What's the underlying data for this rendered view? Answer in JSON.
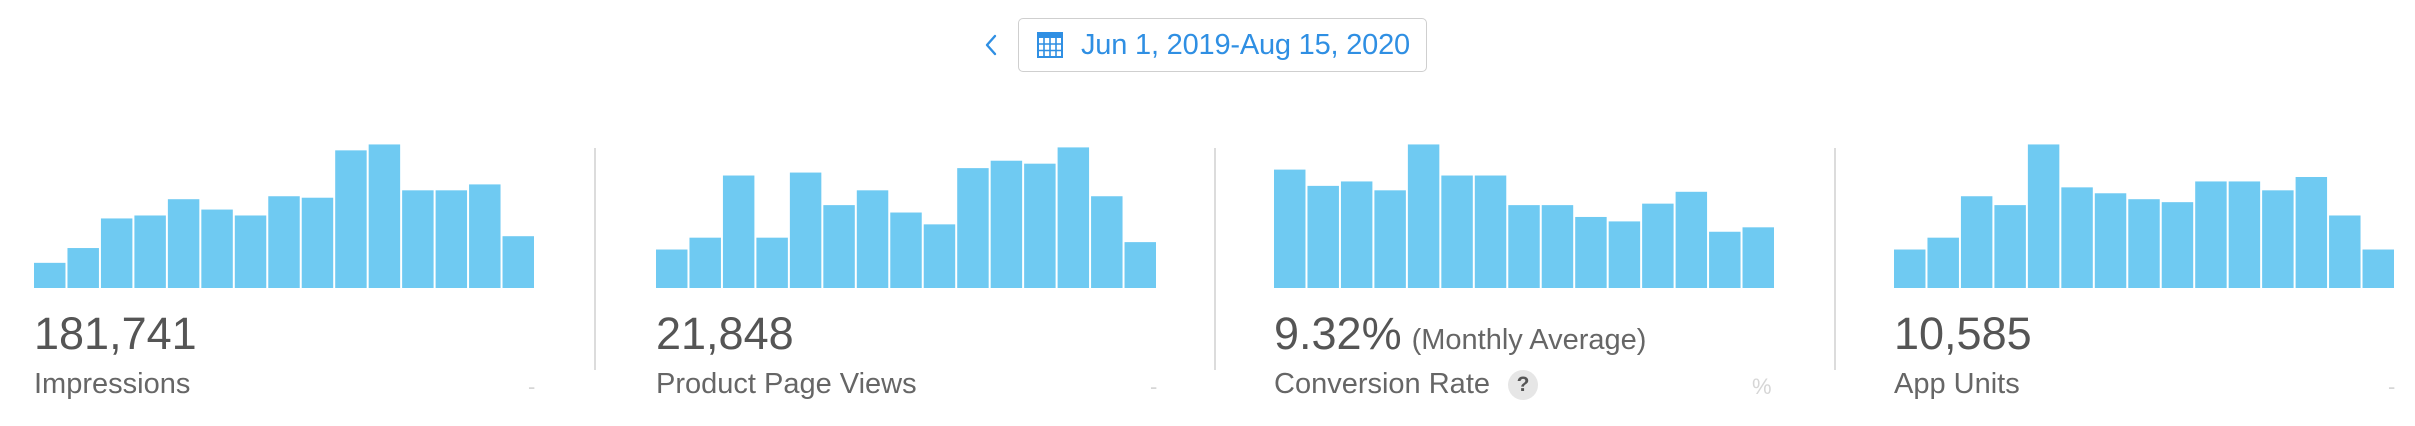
{
  "toolbar": {
    "prev_icon": "chevron-left-icon",
    "calendar_icon": "calendar-icon",
    "date_range": "Jun 1, 2019-Aug 15, 2020"
  },
  "colors": {
    "bar": "#6fcaf2",
    "accent": "#2f8fe3"
  },
  "metrics": [
    {
      "value": "181,741",
      "note": "",
      "label": "Impressions",
      "unit": "-",
      "help": ""
    },
    {
      "value": "21,848",
      "note": "",
      "label": "Product Page Views",
      "unit": "-",
      "help": ""
    },
    {
      "value": "9.32%",
      "note": "(Monthly Average)",
      "label": "Conversion Rate",
      "unit": "%",
      "help": "?"
    },
    {
      "value": "10,585",
      "note": "",
      "label": "App Units",
      "unit": "-",
      "help": ""
    }
  ],
  "chart_data": [
    {
      "type": "bar",
      "values": [
        17,
        27,
        47,
        49,
        60,
        53,
        49,
        62,
        61,
        93,
        97,
        66,
        66,
        70,
        35
      ]
    },
    {
      "type": "bar",
      "values": [
        26,
        34,
        76,
        34,
        78,
        56,
        66,
        51,
        43,
        81,
        86,
        84,
        95,
        62,
        31
      ]
    },
    {
      "type": "bar",
      "values": [
        80,
        69,
        72,
        66,
        97,
        76,
        76,
        56,
        56,
        48,
        45,
        57,
        65,
        38,
        41
      ]
    },
    {
      "type": "bar",
      "values": [
        26,
        34,
        62,
        56,
        97,
        68,
        64,
        60,
        58,
        72,
        72,
        66,
        75,
        49,
        26
      ]
    }
  ]
}
